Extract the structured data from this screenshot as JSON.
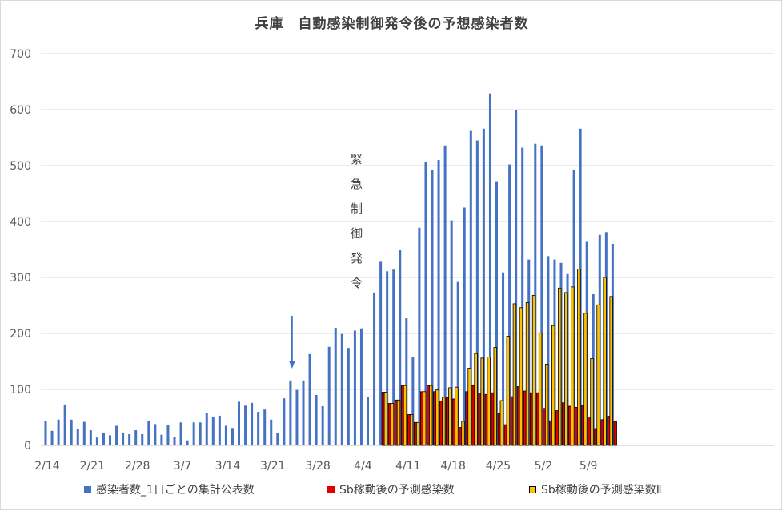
{
  "chart_data": {
    "type": "bar",
    "title": "兵庫　自動感染制御発令後の予想感染者数",
    "ylim": [
      0,
      700
    ],
    "y_ticks": [
      "0",
      "100",
      "200",
      "300",
      "400",
      "500",
      "600",
      "700"
    ],
    "x_ticks": [
      "2/14",
      "2/21",
      "2/28",
      "3/7",
      "3/14",
      "3/21",
      "3/28",
      "4/4",
      "4/11",
      "4/18",
      "4/25",
      "5/2",
      "5/9"
    ],
    "annotation": "緊急制御発令",
    "annotation_date": "3/24",
    "start_date": "2/14",
    "legend_position": "bottom",
    "series": [
      {
        "name": "感染者数_1日ごとの集計公表数",
        "color": "#4472C4",
        "values": [
          43,
          26,
          46,
          73,
          46,
          30,
          42,
          27,
          14,
          23,
          18,
          35,
          23,
          20,
          27,
          20,
          43,
          38,
          19,
          37,
          15,
          41,
          9,
          41,
          41,
          58,
          50,
          53,
          35,
          31,
          78,
          71,
          76,
          60,
          64,
          46,
          22,
          84,
          116,
          99,
          116,
          163,
          90,
          70,
          176,
          210,
          199,
          174,
          205,
          209,
          86,
          273,
          328,
          311,
          314,
          349,
          227,
          157,
          389,
          506,
          492,
          510,
          536,
          402,
          292,
          425,
          562,
          545,
          566,
          629,
          472,
          309,
          502,
          599,
          532,
          332,
          539,
          536,
          338,
          332,
          326,
          306,
          492,
          566,
          365,
          270,
          376,
          381,
          360
        ]
      },
      {
        "name": "Sb稼動後の予測感染数",
        "color": "#E00000",
        "start_date": "4/7",
        "values": [
          95,
          75,
          81,
          107,
          55,
          41,
          96,
          107,
          96,
          79,
          85,
          83,
          32,
          96,
          107,
          92,
          91,
          94,
          57,
          37,
          87,
          105,
          97,
          94,
          94,
          66,
          44,
          62,
          76,
          70,
          68,
          71,
          49,
          30,
          46,
          52,
          43
        ]
      },
      {
        "name": "Sb稼動後の予測感染数Ⅱ",
        "color": "#FFC000",
        "start_date": "4/7",
        "values": [
          95,
          75,
          81,
          107,
          55,
          41,
          96,
          107,
          99,
          86,
          103,
          104,
          43,
          138,
          164,
          156,
          158,
          175,
          80,
          195,
          253,
          246,
          255,
          268,
          201,
          145,
          214,
          281,
          273,
          283,
          315,
          236,
          155,
          251,
          300,
          266
        ]
      }
    ]
  }
}
